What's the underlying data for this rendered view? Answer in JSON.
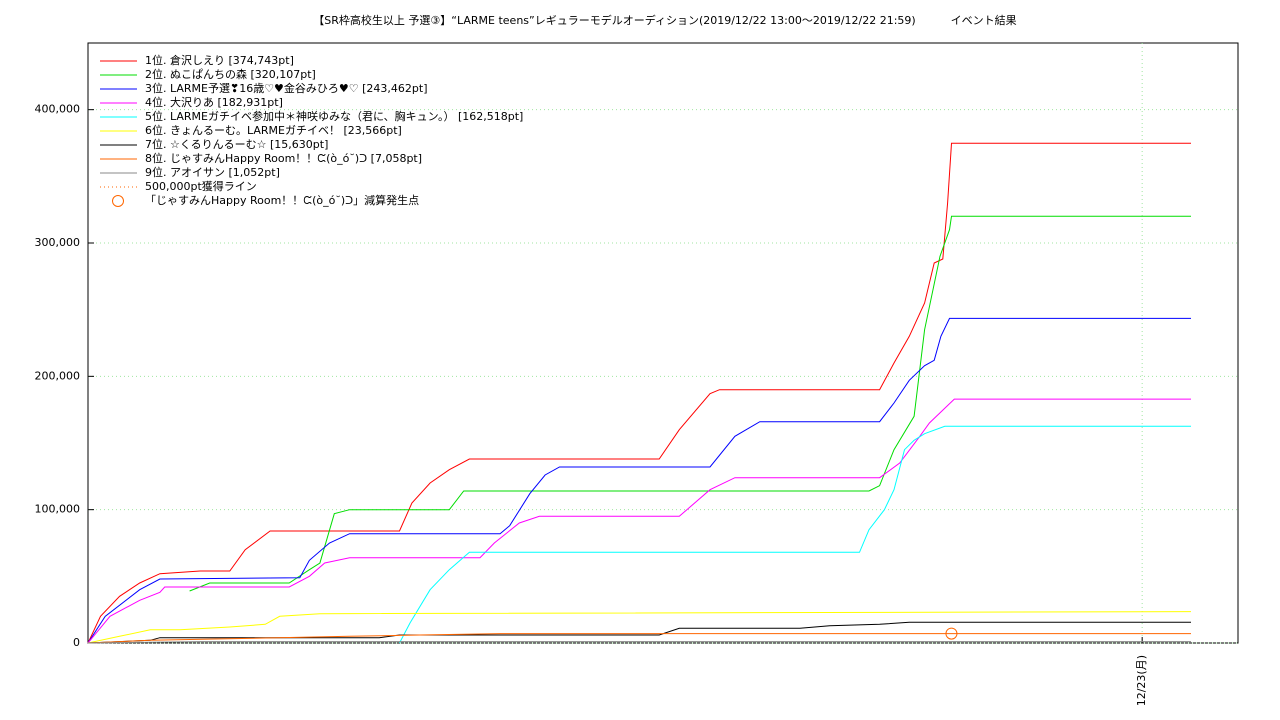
{
  "chart_data": {
    "type": "line",
    "title": "【SR枠高校生以上 予選③】“LARME teens”レギュラーモデルオーディション(2019/12/22 13:00～2019/12/22 21:59)          イベント結果",
    "xlim": [
      13,
      25
    ],
    "xticks": [
      {
        "value": 24,
        "label": "12/23(月)"
      }
    ],
    "ylim": [
      0,
      450000
    ],
    "yticks": [
      0,
      {
        "value": 100000,
        "label": "100,000"
      },
      {
        "value": 200000,
        "label": "200,000"
      },
      {
        "value": 300000,
        "label": "300,000"
      },
      {
        "value": 400000,
        "label": "400,000"
      }
    ],
    "grid": true,
    "legend": "upper left",
    "series": [
      {
        "name": "1位. 倉沢しえり [374,743pt]",
        "color": "#ff0000",
        "x": [
          13.0,
          13.13,
          13.33,
          13.54,
          13.75,
          14.17,
          14.48,
          14.64,
          14.9,
          15.21,
          16.25,
          16.38,
          16.57,
          16.77,
          16.98,
          18.96,
          19.17,
          19.49,
          19.59,
          21.26,
          21.41,
          21.57,
          21.73,
          21.83,
          21.92,
          21.97,
          22.01,
          24.51
        ],
        "values": [
          0,
          20000,
          35000,
          45000,
          52000,
          54000,
          54000,
          70000,
          84000,
          84000,
          84000,
          105000,
          120000,
          130000,
          138000,
          138000,
          160000,
          187000,
          190000,
          190000,
          210000,
          230000,
          255000,
          285000,
          288000,
          330000,
          374743,
          374743
        ]
      },
      {
        "name": "2位. ぬこぱんちの森 [320,107pt]",
        "color": "#00dd00",
        "x": [
          14.06,
          14.27,
          15.1,
          15.31,
          15.42,
          15.57,
          15.73,
          16.77,
          16.92,
          21.15,
          21.26,
          21.41,
          21.62,
          21.73,
          21.89,
          21.99,
          22.01,
          24.51
        ],
        "values": [
          39000,
          45000,
          45000,
          55000,
          60000,
          97000,
          100000,
          100000,
          114000,
          114000,
          118000,
          145000,
          170000,
          235000,
          290000,
          310000,
          320107,
          320107
        ]
      },
      {
        "name": "3位. LARME予選❣16歳♡♥金谷みひろ♥♡ [243,462pt]",
        "color": "#0000ff",
        "x": [
          13.0,
          13.18,
          13.54,
          13.75,
          15.21,
          15.31,
          15.52,
          15.73,
          17.3,
          17.4,
          17.61,
          17.77,
          17.92,
          19.49,
          19.75,
          20.01,
          21.26,
          21.41,
          21.57,
          21.73,
          21.83,
          21.9,
          21.99,
          24.51
        ],
        "values": [
          0,
          20000,
          40000,
          48000,
          49000,
          62000,
          75000,
          82000,
          82000,
          88000,
          112000,
          126000,
          132000,
          132000,
          155000,
          166000,
          166000,
          180000,
          197000,
          208000,
          212000,
          230000,
          243462,
          243462
        ]
      },
      {
        "name": "4位. 大沢りあ [182,931pt]",
        "color": "#ff00ff",
        "x": [
          13.0,
          13.23,
          13.54,
          13.75,
          13.8,
          15.1,
          15.31,
          15.47,
          15.73,
          17.09,
          17.24,
          17.5,
          17.71,
          19.17,
          19.49,
          19.75,
          21.26,
          21.47,
          21.68,
          21.78,
          22.04,
          24.51
        ],
        "values": [
          0,
          20000,
          32000,
          38000,
          42000,
          42000,
          50000,
          60000,
          64000,
          64000,
          75000,
          90000,
          95000,
          95000,
          115000,
          124000,
          124000,
          135000,
          155000,
          165000,
          182931,
          182931
        ]
      },
      {
        "name": "5位. LARMEガチイベ参加中＊神咲ゆみな（君に、胸キュン。） [162,518pt]",
        "color": "#00ffff",
        "x": [
          16.25,
          16.36,
          16.57,
          16.77,
          16.98,
          21.05,
          21.15,
          21.31,
          21.41,
          21.52,
          21.62,
          21.73,
          21.94,
          24.51
        ],
        "values": [
          0,
          15000,
          40000,
          55000,
          68000,
          68000,
          85000,
          100000,
          115000,
          145000,
          152000,
          157000,
          162518,
          162518
        ]
      },
      {
        "name": "6位. きょんるーむ。LARMEガチイベ！ [23,566pt]",
        "color": "#ffff00",
        "x": [
          13.0,
          13.33,
          13.65,
          13.96,
          14.48,
          14.85,
          15.0,
          15.42,
          24.51
        ],
        "values": [
          0,
          5000,
          10000,
          10000,
          12000,
          14000,
          20000,
          22000,
          23566
        ]
      },
      {
        "name": "7位. ☆くるりんるーむ☆ [15,630pt]",
        "color": "#000000",
        "x": [
          13.0,
          13.65,
          13.75,
          16.04,
          16.25,
          18.96,
          19.17,
          20.43,
          20.74,
          21.26,
          21.57,
          24.51
        ],
        "values": [
          0,
          2000,
          4000,
          4000,
          6000,
          6000,
          11000,
          11000,
          13000,
          14000,
          15630,
          15630
        ]
      },
      {
        "name": "8位. じゃすみんHappy Room！！ᙅ(ò_ό˘)ᑐ [7,058pt]",
        "color": "#ff6600",
        "x": [
          13.0,
          13.65,
          15.73,
          16.46,
          17.3,
          24.51
        ],
        "values": [
          0,
          2000,
          5000,
          6000,
          7058,
          7058
        ]
      },
      {
        "name": "9位. アオイサン [1,052pt]",
        "color": "#888888",
        "x": [
          13.0,
          14.17,
          24.51
        ],
        "values": [
          0,
          1052,
          1052
        ]
      }
    ],
    "legend_extras": [
      {
        "name": "500,000pt獲得ライン",
        "color": "#ff6600",
        "style": "dotted"
      },
      {
        "name": "「じゃすみんHappy Room！！ᙅ(ò_ό˘)ᑐ」減算発生点",
        "color": "#ff6600",
        "style": "circle",
        "x": 22.01,
        "y": 7058
      }
    ]
  }
}
